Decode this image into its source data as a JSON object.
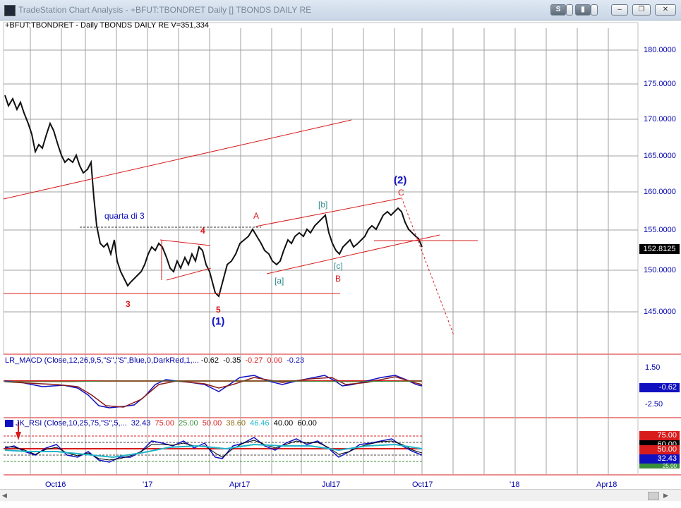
{
  "window": {
    "title": "TradeStation Chart Analysis - +BFUT:TBONDRET Daily [] TBONDS DAILY RE",
    "buttons": [
      "S",
      "▼"
    ]
  },
  "main_chart": {
    "legend": "+BFUT:TBONDRET - Daily  TBONDS DAILY RE  V=351,334",
    "price_axis": [
      "180.0000",
      "175.0000",
      "170.0000",
      "165.0000",
      "160.0000",
      "155.0000",
      "150.0000",
      "145.0000"
    ],
    "last_price": "152.8125",
    "annotations": {
      "quarta": "quarta di 3",
      "w3": "3",
      "w4": "4",
      "w5": "5",
      "wave1": "(1)",
      "wA": "A",
      "wb": "[b]",
      "wa": "[a]",
      "wc": "[c]",
      "wB": "B",
      "wave2": "(2)",
      "wC": "C"
    }
  },
  "macd": {
    "legend_name": "LR_MACD (Close,12,26,9,5,\"S\",\"S\",Blue,0,DarkRed,1,...",
    "values": [
      "-0.62",
      "-0.35",
      "-0.27",
      "0.00",
      "-0.23"
    ],
    "axis": [
      "1.50",
      "-0.62",
      "-2.50"
    ],
    "box_value": "-0.62"
  },
  "rsi": {
    "legend_name": "JK_RSI (Close,10,25,75,\"S\",5,...",
    "values": [
      "32.43",
      "75.00",
      "25.00",
      "50.00",
      "38.60",
      "46.46",
      "40.00",
      "60.00"
    ],
    "axis_boxes": [
      "75.00",
      "60.00",
      "50.00",
      "32.43",
      "25.00"
    ]
  },
  "x_axis": [
    "Oct16",
    "'17",
    "Apr17",
    "Jul17",
    "Oct17",
    "'18",
    "Apr18"
  ],
  "colors": {
    "red": "#d81c1c",
    "blue": "#1010c0",
    "teal": "#2d8b8b",
    "grid": "#a0a0a0"
  }
}
